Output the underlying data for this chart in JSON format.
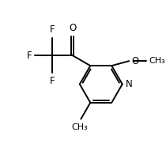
{
  "background_color": "#ffffff",
  "line_color": "#000000",
  "line_width": 1.4,
  "font_size_atom": 8.5,
  "fig_width": 2.1,
  "fig_height": 1.91,
  "dpi": 100,
  "xlim": [
    0.0,
    10.0
  ],
  "ylim": [
    0.0,
    9.5
  ]
}
